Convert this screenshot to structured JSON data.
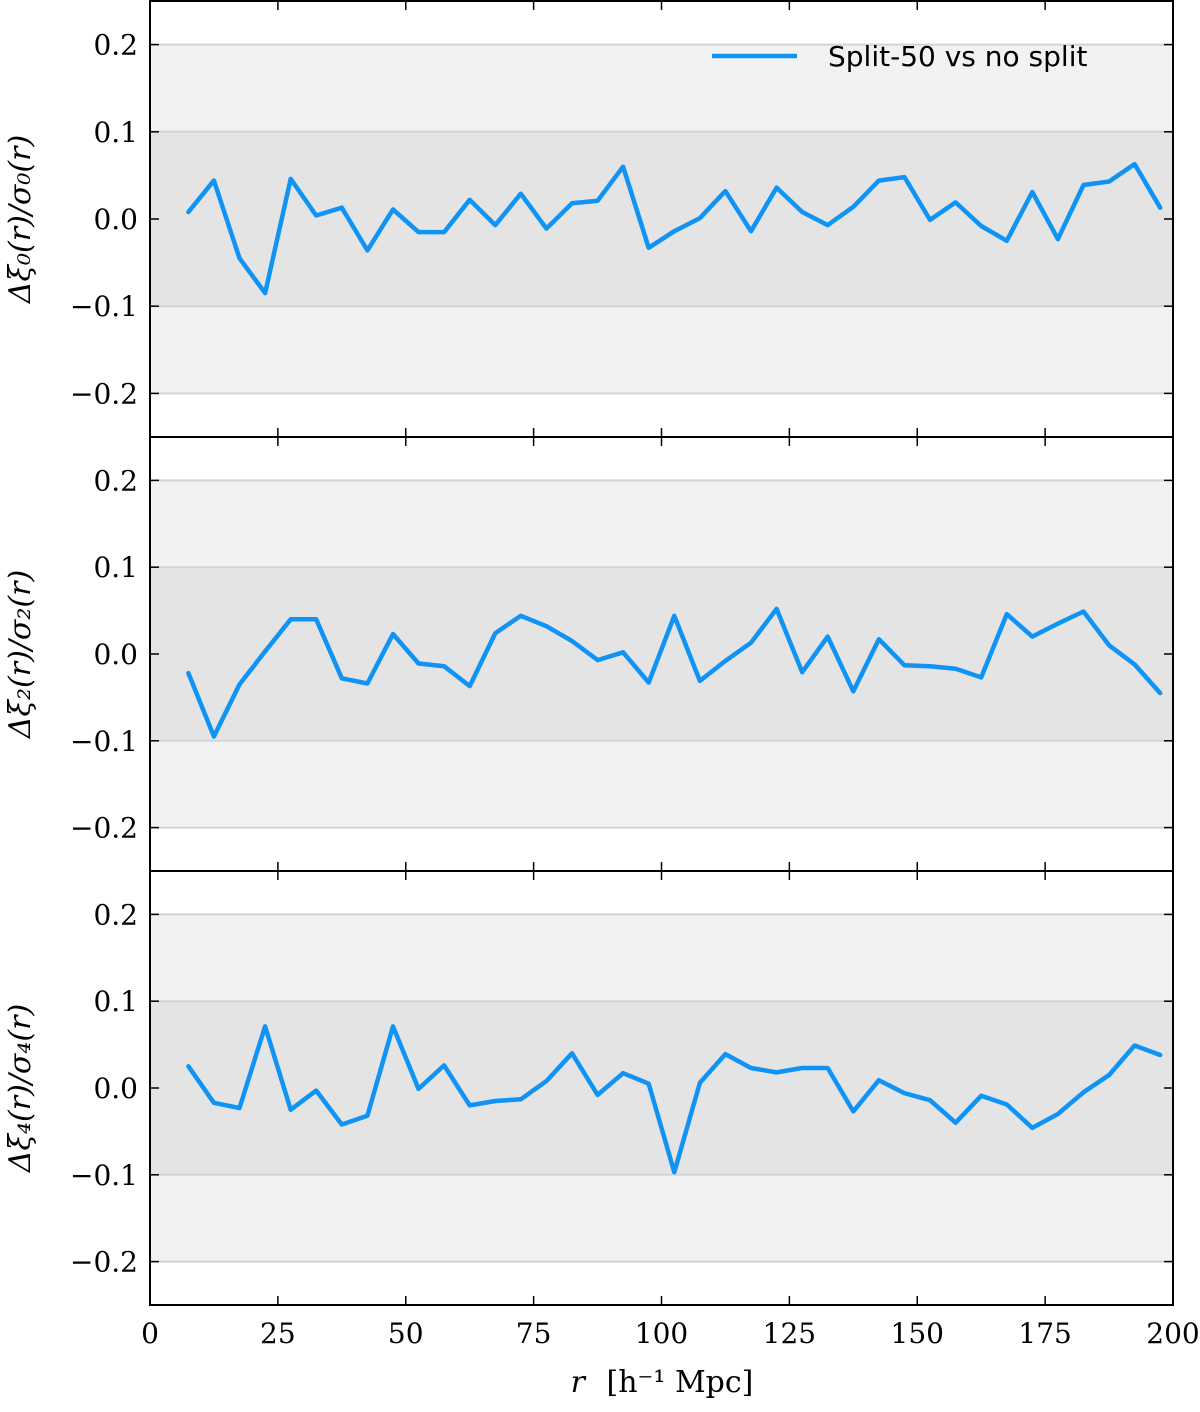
{
  "chart_data": {
    "type": "line",
    "layout": "three vertically stacked panels sharing the x axis",
    "legend": {
      "location": "top-right of top panel",
      "label": "Split-50 vs no split"
    },
    "colors": {
      "line": "#0f93f5",
      "band_inner": "#e4e4e4",
      "band_outer": "#f2f2f2",
      "hline": "#d4d4d4",
      "axes": "#000000"
    },
    "xlabel": {
      "var": "r",
      "unit": "[h⁻¹ Mpc]"
    },
    "xlim": [
      0,
      200
    ],
    "xticks": [
      0,
      25,
      50,
      75,
      100,
      125,
      150,
      175,
      200
    ],
    "xtick_labels": [
      "0",
      "25",
      "50",
      "75",
      "100",
      "125",
      "150",
      "175",
      "200"
    ],
    "ylim": [
      -0.25,
      0.25
    ],
    "yticks": [
      0.2,
      0.1,
      0.0,
      -0.1,
      -0.2
    ],
    "ytick_labels": [
      "0.2",
      "0.1",
      "0.0",
      "−0.1",
      "−0.2"
    ],
    "bands": {
      "inner": [
        -0.1,
        0.1
      ],
      "outer": [
        -0.2,
        0.2
      ]
    },
    "x": [
      7.5,
      12.5,
      17.5,
      22.5,
      27.5,
      32.5,
      37.5,
      42.5,
      47.5,
      52.5,
      57.5,
      62.5,
      67.5,
      72.5,
      77.5,
      82.5,
      87.5,
      92.5,
      97.5,
      102.5,
      107.5,
      112.5,
      117.5,
      122.5,
      127.5,
      132.5,
      137.5,
      142.5,
      147.5,
      152.5,
      157.5,
      162.5,
      167.5,
      172.5,
      177.5,
      182.5,
      187.5,
      192.5,
      197.5
    ],
    "panels": [
      {
        "ylabel": "Δξ₀(r)/σ₀(r)",
        "values": [
          0.008,
          0.044,
          -0.045,
          -0.085,
          0.046,
          0.004,
          0.013,
          -0.036,
          0.011,
          -0.015,
          -0.015,
          0.022,
          -0.007,
          0.029,
          -0.011,
          0.018,
          0.021,
          0.06,
          -0.033,
          -0.014,
          0.001,
          0.032,
          -0.014,
          0.036,
          0.008,
          -0.007,
          0.014,
          0.044,
          0.048,
          -0.001,
          0.019,
          -0.008,
          -0.025,
          0.031,
          -0.023,
          0.039,
          0.043,
          0.063,
          0.013
        ]
      },
      {
        "ylabel": "Δξ₂(r)/σ₂(r)",
        "values": [
          -0.022,
          -0.095,
          -0.035,
          0.003,
          0.04,
          0.04,
          -0.028,
          -0.034,
          0.023,
          -0.011,
          -0.014,
          -0.037,
          0.024,
          0.044,
          0.032,
          0.015,
          -0.007,
          0.002,
          -0.033,
          0.044,
          -0.031,
          -0.008,
          0.013,
          0.052,
          -0.021,
          0.02,
          -0.043,
          0.017,
          -0.013,
          -0.014,
          -0.017,
          -0.027,
          0.046,
          0.02,
          0.035,
          0.049,
          0.01,
          -0.012,
          -0.045
        ]
      },
      {
        "ylabel": "Δξ₄(r)/σ₄(r)",
        "values": [
          0.025,
          -0.017,
          -0.023,
          0.071,
          -0.025,
          -0.003,
          -0.042,
          -0.032,
          0.071,
          -0.001,
          0.026,
          -0.02,
          -0.015,
          -0.013,
          0.008,
          0.04,
          -0.008,
          0.017,
          0.005,
          -0.097,
          0.006,
          0.039,
          0.023,
          0.018,
          0.023,
          0.023,
          -0.027,
          0.009,
          -0.006,
          -0.014,
          -0.04,
          -0.009,
          -0.019,
          -0.046,
          -0.03,
          -0.005,
          0.015,
          0.049,
          0.038
        ]
      }
    ]
  }
}
